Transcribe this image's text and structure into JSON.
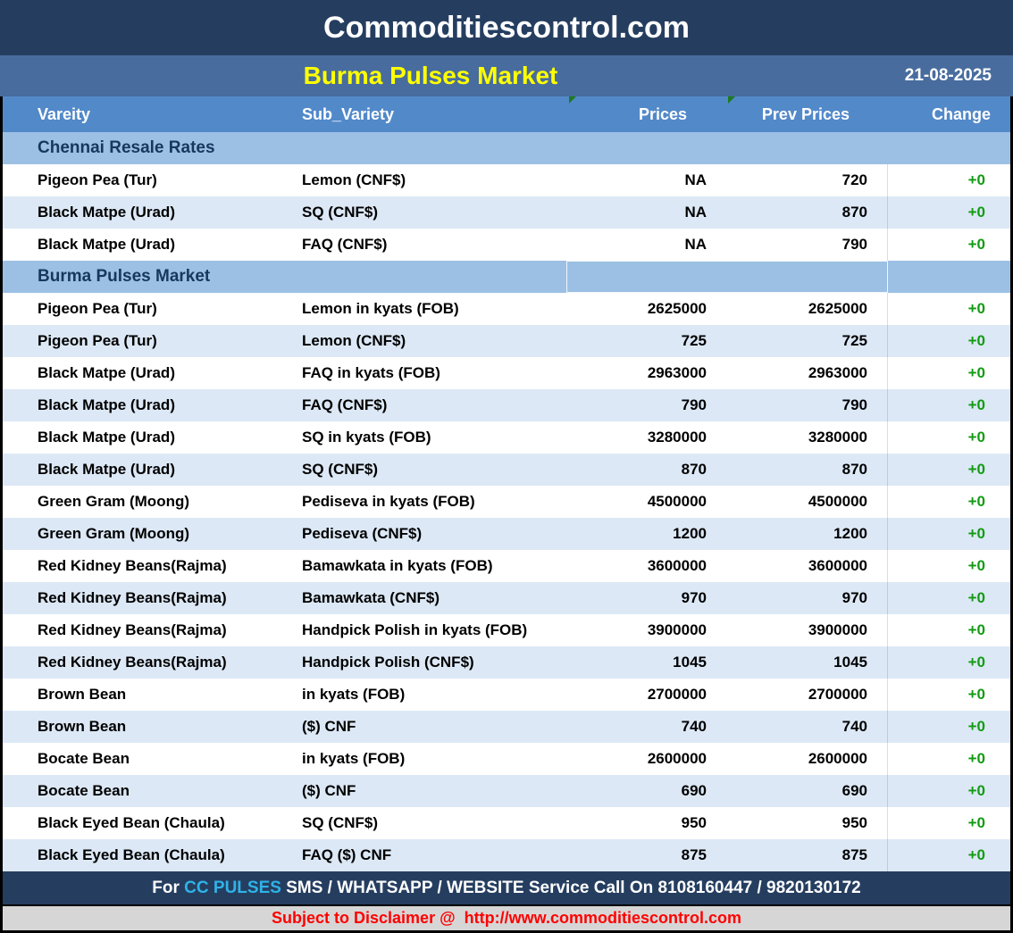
{
  "header": {
    "site_title": "Commoditiescontrol.com",
    "report_title": "Burma Pulses Market",
    "date": "21-08-2025"
  },
  "table": {
    "columns": {
      "variety": "Vareity",
      "sub_variety": "Sub_Variety",
      "prices": "Prices",
      "prev_prices": "Prev Prices",
      "change": "Change"
    },
    "rows": [
      {
        "type": "section",
        "label": "Chennai Resale Rates"
      },
      {
        "type": "data",
        "variety": "Pigeon Pea (Tur)",
        "sub_variety": "Lemon (CNF$)",
        "price": "NA",
        "prev_price": "720",
        "change": "+0"
      },
      {
        "type": "data",
        "variety": "Black Matpe (Urad)",
        "sub_variety": "SQ (CNF$)",
        "price": "NA",
        "prev_price": "870",
        "change": "+0"
      },
      {
        "type": "data",
        "variety": "Black Matpe (Urad)",
        "sub_variety": "FAQ (CNF$)",
        "price": "NA",
        "prev_price": "790",
        "change": "+0"
      },
      {
        "type": "section",
        "label": "Burma Pulses Market"
      },
      {
        "type": "data",
        "variety": "Pigeon Pea (Tur)",
        "sub_variety": "Lemon in kyats (FOB)",
        "price": "2625000",
        "prev_price": "2625000",
        "change": "+0"
      },
      {
        "type": "data",
        "variety": "Pigeon Pea (Tur)",
        "sub_variety": "Lemon (CNF$)",
        "price": "725",
        "prev_price": "725",
        "change": "+0"
      },
      {
        "type": "data",
        "variety": "Black Matpe (Urad)",
        "sub_variety": "FAQ in kyats (FOB)",
        "price": "2963000",
        "prev_price": "2963000",
        "change": "+0"
      },
      {
        "type": "data",
        "variety": "Black Matpe (Urad)",
        "sub_variety": "FAQ (CNF$)",
        "price": "790",
        "prev_price": "790",
        "change": "+0"
      },
      {
        "type": "data",
        "variety": "Black Matpe (Urad)",
        "sub_variety": "SQ in kyats (FOB)",
        "price": "3280000",
        "prev_price": "3280000",
        "change": "+0"
      },
      {
        "type": "data",
        "variety": "Black Matpe (Urad)",
        "sub_variety": "SQ (CNF$)",
        "price": "870",
        "prev_price": "870",
        "change": "+0"
      },
      {
        "type": "data",
        "variety": "Green Gram (Moong)",
        "sub_variety": "Pediseva in kyats (FOB)",
        "price": "4500000",
        "prev_price": "4500000",
        "change": "+0"
      },
      {
        "type": "data",
        "variety": "Green Gram (Moong)",
        "sub_variety": "Pediseva (CNF$)",
        "price": "1200",
        "prev_price": "1200",
        "change": "+0"
      },
      {
        "type": "data",
        "variety": "Red Kidney Beans(Rajma)",
        "sub_variety": "Bamawkata in kyats (FOB)",
        "price": "3600000",
        "prev_price": "3600000",
        "change": "+0"
      },
      {
        "type": "data",
        "variety": "Red Kidney Beans(Rajma)",
        "sub_variety": "Bamawkata (CNF$)",
        "price": "970",
        "prev_price": "970",
        "change": "+0"
      },
      {
        "type": "data",
        "variety": "Red Kidney Beans(Rajma)",
        "sub_variety": "Handpick Polish in kyats (FOB)",
        "price": "3900000",
        "prev_price": "3900000",
        "change": "+0"
      },
      {
        "type": "data",
        "variety": "Red Kidney Beans(Rajma)",
        "sub_variety": "Handpick Polish (CNF$)",
        "price": "1045",
        "prev_price": "1045",
        "change": "+0"
      },
      {
        "type": "data",
        "variety": "Brown Bean",
        "sub_variety": "in kyats (FOB)",
        "price": "2700000",
        "prev_price": "2700000",
        "change": "+0"
      },
      {
        "type": "data",
        "variety": "Brown Bean",
        "sub_variety": "($) CNF",
        "price": "740",
        "prev_price": "740",
        "change": "+0"
      },
      {
        "type": "data",
        "variety": "Bocate Bean",
        "sub_variety": "in kyats (FOB)",
        "price": "2600000",
        "prev_price": "2600000",
        "change": "+0"
      },
      {
        "type": "data",
        "variety": "Bocate Bean",
        "sub_variety": "($) CNF",
        "price": "690",
        "prev_price": "690",
        "change": "+0"
      },
      {
        "type": "data",
        "variety": "Black Eyed Bean (Chaula)",
        "sub_variety": "SQ (CNF$)",
        "price": "950",
        "prev_price": "950",
        "change": "+0"
      },
      {
        "type": "data",
        "variety": "Black Eyed Bean (Chaula)",
        "sub_variety": "FAQ ($) CNF",
        "price": "875",
        "prev_price": "875",
        "change": "+0"
      }
    ]
  },
  "footer": {
    "prefix": "For ",
    "brand": "CC PULSES",
    "rest": " SMS / WHATSAPP / WEBSITE Service Call On 8108160447 / 9820130172"
  },
  "disclaimer": {
    "label": "Subject to Disclaimer @  ",
    "url": "http://www.commoditiescontrol.com"
  },
  "colors": {
    "navy": "#253E60",
    "title_bar_blue": "#486C9E",
    "header_row_blue": "#5289C9",
    "section_row_blue": "#9CC0E4",
    "alt_row_blue": "#DCE8F5",
    "section_text_navy": "#17375E",
    "change_green": "#119B11",
    "brand_cyan": "#2FB3E8",
    "title_yellow": "#FFFF00",
    "disclaimer_red": "#FF0000",
    "disclaimer_gray": "#D6D6D6"
  }
}
